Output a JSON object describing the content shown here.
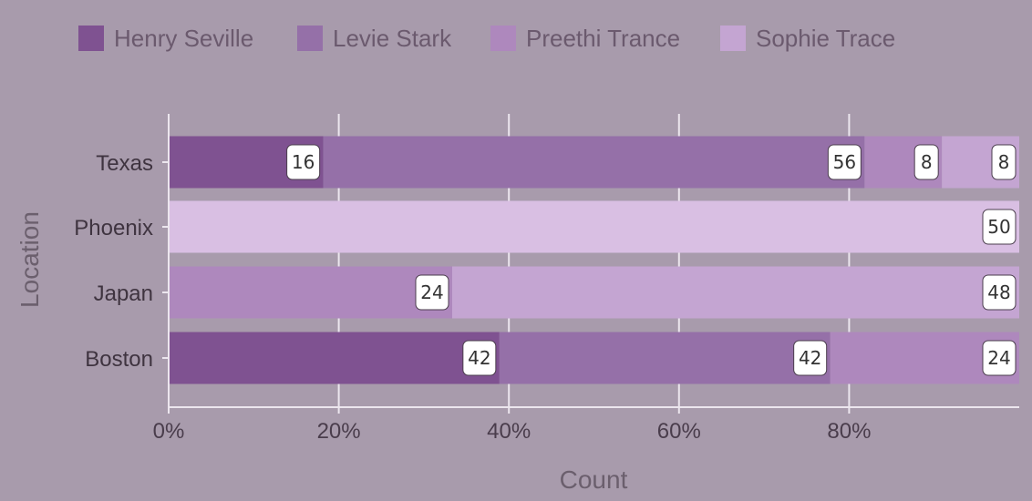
{
  "chart_data": {
    "type": "bar",
    "orientation": "horizontal",
    "stacked": "percent",
    "categories": [
      "Texas",
      "Phoenix",
      "Japan",
      "Boston"
    ],
    "series": [
      {
        "name": "Henry Seville",
        "color": "#7f5291",
        "values": [
          16,
          0,
          0,
          42
        ]
      },
      {
        "name": "Levie Stark",
        "color": "#9570a8",
        "values": [
          56,
          0,
          0,
          42
        ]
      },
      {
        "name": "Preethi Trance",
        "color": "#ae88bd",
        "values": [
          8,
          0,
          24,
          24
        ]
      },
      {
        "name": "Sophie Trace",
        "color": "#c4a5d2",
        "values": [
          8,
          0,
          48,
          0
        ]
      },
      {
        "name": "",
        "color": "#d9bfe3",
        "values": [
          0,
          50,
          0,
          0
        ]
      }
    ],
    "xlabel": "Count",
    "ylabel": "Location",
    "xlim": [
      0,
      1
    ],
    "xticks": [
      "0%",
      "20%",
      "40%",
      "60%",
      "80%"
    ],
    "grid": true,
    "legend_position": "top-left"
  }
}
